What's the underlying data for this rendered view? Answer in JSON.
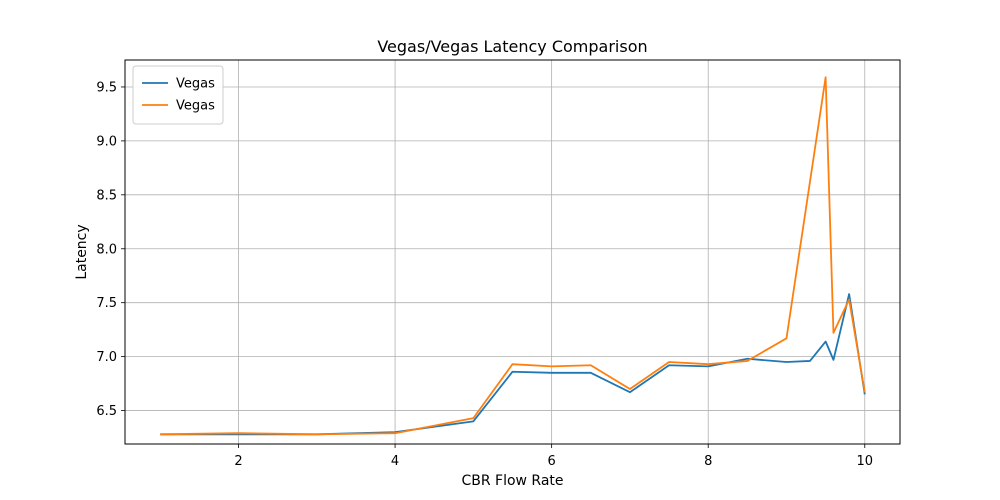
{
  "chart_data": {
    "type": "line",
    "title": "Vegas/Vegas Latency Comparison",
    "xlabel": "CBR Flow Rate",
    "ylabel": "Latency",
    "xlim": [
      0.55,
      10.45
    ],
    "ylim": [
      6.19,
      9.75
    ],
    "xticks": [
      2,
      4,
      6,
      8,
      10
    ],
    "yticks": [
      6.5,
      7.0,
      7.5,
      8.0,
      8.5,
      9.0,
      9.5
    ],
    "xtick_labels": [
      "2",
      "4",
      "6",
      "8",
      "10"
    ],
    "ytick_labels": [
      "6.5",
      "7.0",
      "7.5",
      "8.0",
      "8.5",
      "9.0",
      "9.5"
    ],
    "grid": true,
    "legend_position": "upper-left",
    "series": [
      {
        "name": "Vegas",
        "color": "#1f77b4",
        "x": [
          1,
          2,
          3,
          4,
          5,
          5.5,
          6,
          6.5,
          7,
          7.5,
          8,
          8.5,
          9,
          9.3,
          9.5,
          9.6,
          9.8,
          10
        ],
        "y": [
          6.28,
          6.28,
          6.28,
          6.3,
          6.4,
          6.86,
          6.85,
          6.85,
          6.67,
          6.92,
          6.91,
          6.98,
          6.95,
          6.96,
          7.14,
          6.97,
          7.58,
          6.65
        ]
      },
      {
        "name": "Vegas",
        "color": "#ff7f0e",
        "x": [
          1,
          2,
          3,
          4,
          5,
          5.5,
          6,
          6.5,
          7,
          7.5,
          8,
          8.5,
          9,
          9.5,
          9.6,
          9.8,
          10
        ],
        "y": [
          6.28,
          6.29,
          6.28,
          6.29,
          6.43,
          6.93,
          6.91,
          6.92,
          6.7,
          6.95,
          6.93,
          6.96,
          7.17,
          9.59,
          7.22,
          7.53,
          6.67
        ]
      }
    ]
  }
}
